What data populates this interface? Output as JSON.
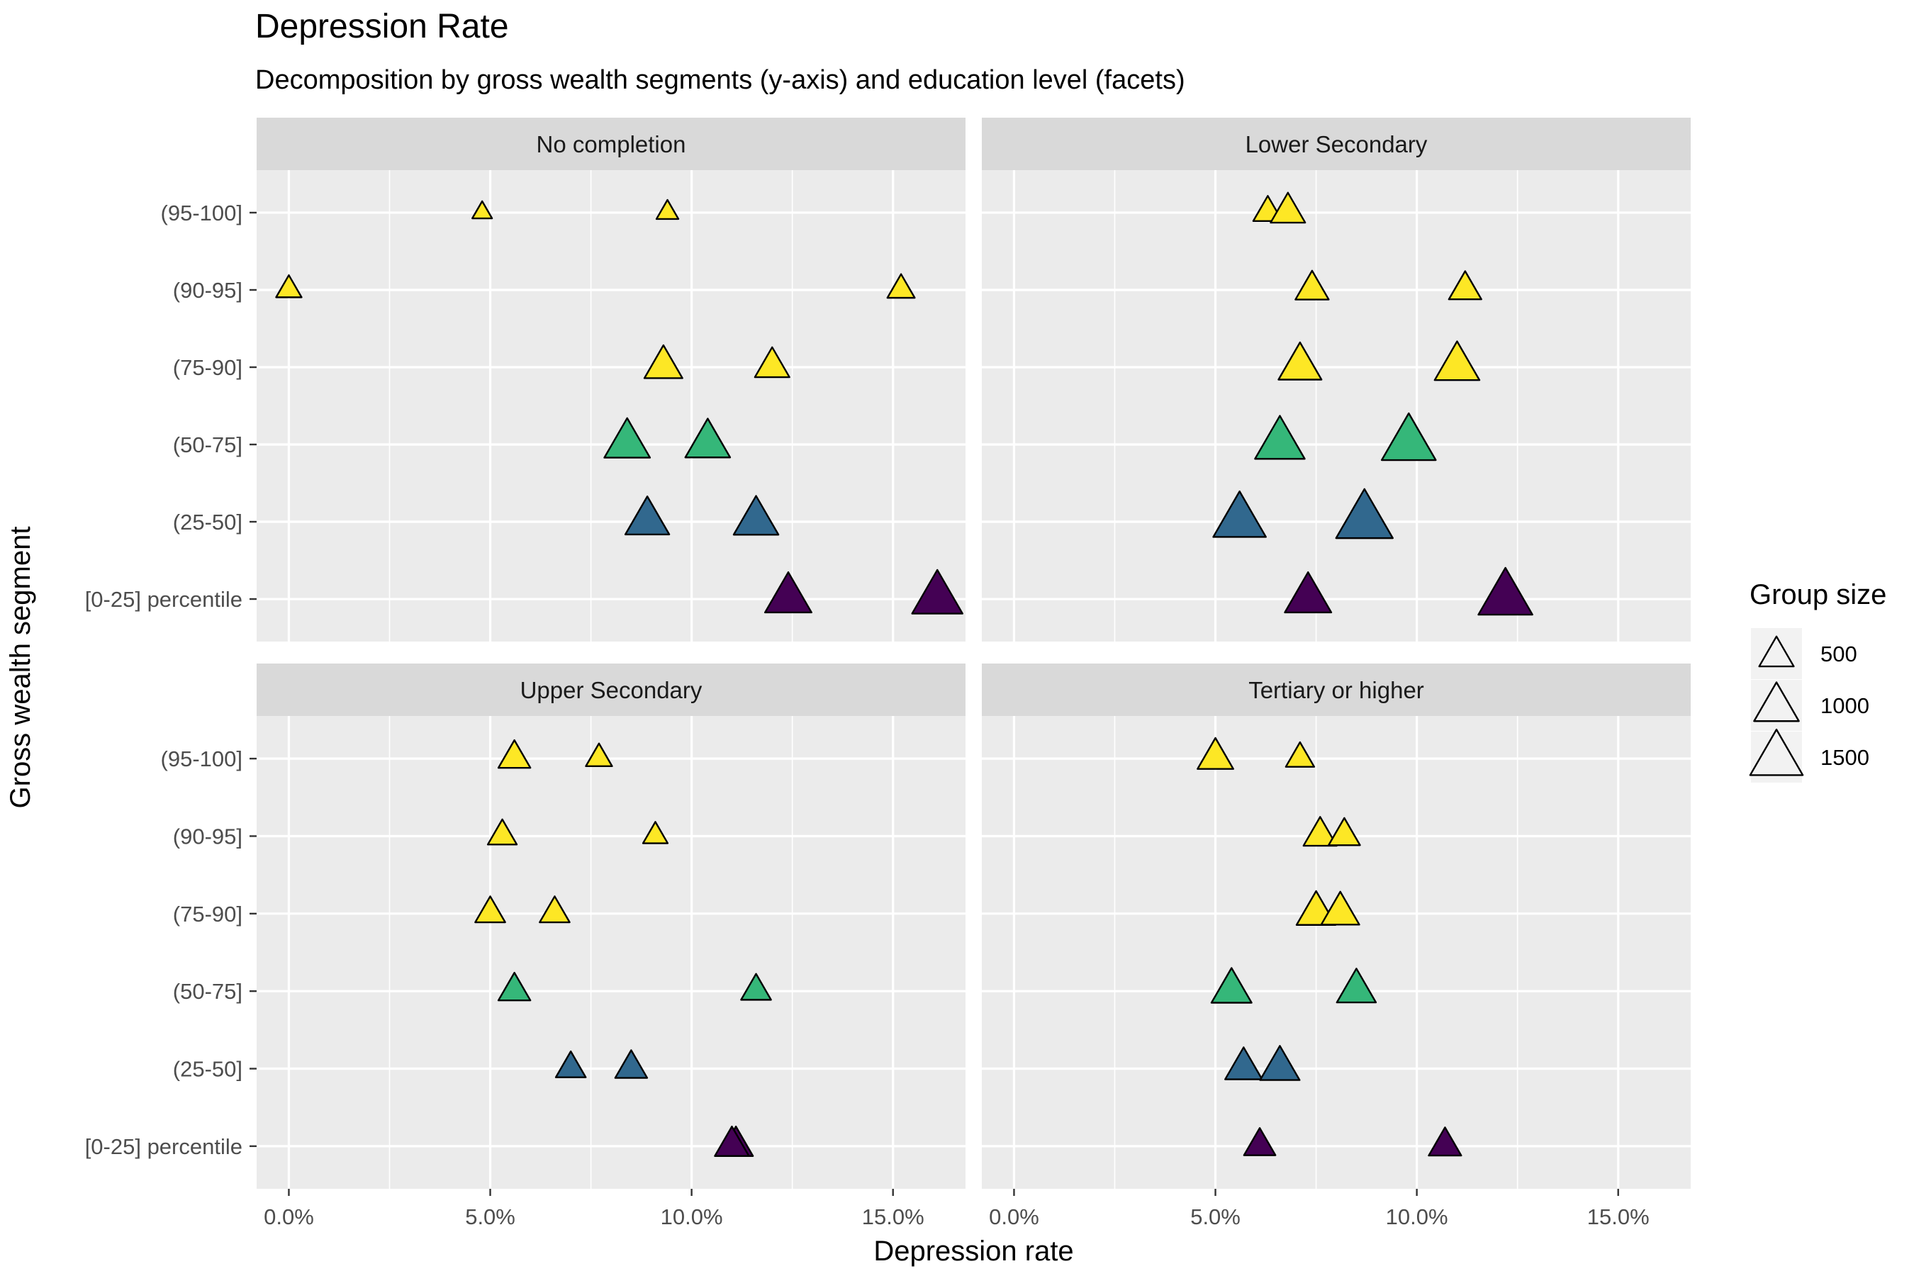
{
  "chart_data": {
    "type": "scatter",
    "title": "Depression Rate",
    "subtitle": "Decomposition by gross wealth segments (y-axis) and education level (facets)",
    "xlabel": "Depression rate",
    "ylabel": "Gross wealth segment",
    "xlim": [
      -0.008,
      0.168
    ],
    "x_ticks": [
      0,
      0.05,
      0.1,
      0.15
    ],
    "x_tick_labels": [
      "0.0%",
      "5.0%",
      "10.0%",
      "15.0%"
    ],
    "categories": [
      "[0-25] percentile",
      "(25-50]",
      "(50-75]",
      "(75-90]",
      "(90-95]",
      "(95-100]"
    ],
    "category_colors": {
      "[0-25] percentile": "#440154",
      "(25-50]": "#31688E",
      "(50-75]": "#35B779",
      "(75-90]": "#FDE725",
      "(90-95]": "#FDE725",
      "(95-100]": "#FDE725"
    },
    "grid": true,
    "legend": {
      "title": "Group size",
      "position": "right",
      "entries": [
        {
          "label": "500",
          "size": 500
        },
        {
          "label": "1000",
          "size": 1000
        },
        {
          "label": "1500",
          "size": 1500
        }
      ]
    },
    "facets": [
      {
        "label": "No completion",
        "points": [
          {
            "segment": "(95-100]",
            "x": 0.048,
            "size": 80
          },
          {
            "segment": "(95-100]",
            "x": 0.094,
            "size": 120
          },
          {
            "segment": "(90-95]",
            "x": 0.0,
            "size": 200
          },
          {
            "segment": "(90-95]",
            "x": 0.152,
            "size": 250
          },
          {
            "segment": "(75-90]",
            "x": 0.093,
            "size": 650
          },
          {
            "segment": "(75-90]",
            "x": 0.12,
            "size": 500
          },
          {
            "segment": "(50-75]",
            "x": 0.084,
            "size": 1050
          },
          {
            "segment": "(50-75]",
            "x": 0.104,
            "size": 1000
          },
          {
            "segment": "(25-50]",
            "x": 0.089,
            "size": 950
          },
          {
            "segment": "(25-50]",
            "x": 0.116,
            "size": 1000
          },
          {
            "segment": "[0-25] percentile",
            "x": 0.124,
            "size": 1100
          },
          {
            "segment": "[0-25] percentile",
            "x": 0.161,
            "size": 1350
          }
        ]
      },
      {
        "label": "Lower Secondary",
        "points": [
          {
            "segment": "(95-100]",
            "x": 0.063,
            "size": 300
          },
          {
            "segment": "(95-100]",
            "x": 0.068,
            "size": 500
          },
          {
            "segment": "(90-95]",
            "x": 0.074,
            "size": 450
          },
          {
            "segment": "(90-95]",
            "x": 0.112,
            "size": 420
          },
          {
            "segment": "(75-90]",
            "x": 0.071,
            "size": 900
          },
          {
            "segment": "(75-90]",
            "x": 0.11,
            "size": 1000
          },
          {
            "segment": "(50-75]",
            "x": 0.066,
            "size": 1300
          },
          {
            "segment": "(50-75]",
            "x": 0.098,
            "size": 1600
          },
          {
            "segment": "(25-50]",
            "x": 0.056,
            "size": 1500
          },
          {
            "segment": "(25-50]",
            "x": 0.087,
            "size": 1800
          },
          {
            "segment": "[0-25] percentile",
            "x": 0.073,
            "size": 1100
          },
          {
            "segment": "[0-25] percentile",
            "x": 0.122,
            "size": 1600
          }
        ]
      },
      {
        "label": "Upper Secondary",
        "points": [
          {
            "segment": "(95-100]",
            "x": 0.056,
            "size": 400
          },
          {
            "segment": "(95-100]",
            "x": 0.077,
            "size": 220
          },
          {
            "segment": "(90-95]",
            "x": 0.053,
            "size": 300
          },
          {
            "segment": "(90-95]",
            "x": 0.091,
            "size": 180
          },
          {
            "segment": "(75-90]",
            "x": 0.05,
            "size": 330
          },
          {
            "segment": "(75-90]",
            "x": 0.066,
            "size": 330
          },
          {
            "segment": "(50-75]",
            "x": 0.056,
            "size": 400
          },
          {
            "segment": "(50-75]",
            "x": 0.116,
            "size": 330
          },
          {
            "segment": "(25-50]",
            "x": 0.07,
            "size": 330
          },
          {
            "segment": "(25-50]",
            "x": 0.085,
            "size": 400
          },
          {
            "segment": "[0-25] percentile",
            "x": 0.111,
            "size": 480
          },
          {
            "segment": "[0-25] percentile",
            "x": 0.11,
            "size": 480
          }
        ]
      },
      {
        "label": "Tertiary or higher",
        "points": [
          {
            "segment": "(95-100]",
            "x": 0.05,
            "size": 550
          },
          {
            "segment": "(95-100]",
            "x": 0.071,
            "size": 280
          },
          {
            "segment": "(90-95]",
            "x": 0.076,
            "size": 450
          },
          {
            "segment": "(90-95]",
            "x": 0.082,
            "size": 380
          },
          {
            "segment": "(75-90]",
            "x": 0.075,
            "size": 700
          },
          {
            "segment": "(75-90]",
            "x": 0.081,
            "size": 650
          },
          {
            "segment": "(50-75]",
            "x": 0.054,
            "size": 750
          },
          {
            "segment": "(50-75]",
            "x": 0.085,
            "size": 700
          },
          {
            "segment": "(25-50]",
            "x": 0.057,
            "size": 600
          },
          {
            "segment": "(25-50]",
            "x": 0.066,
            "size": 720
          },
          {
            "segment": "[0-25] percentile",
            "x": 0.061,
            "size": 380
          },
          {
            "segment": "[0-25] percentile",
            "x": 0.107,
            "size": 420
          }
        ]
      }
    ]
  }
}
